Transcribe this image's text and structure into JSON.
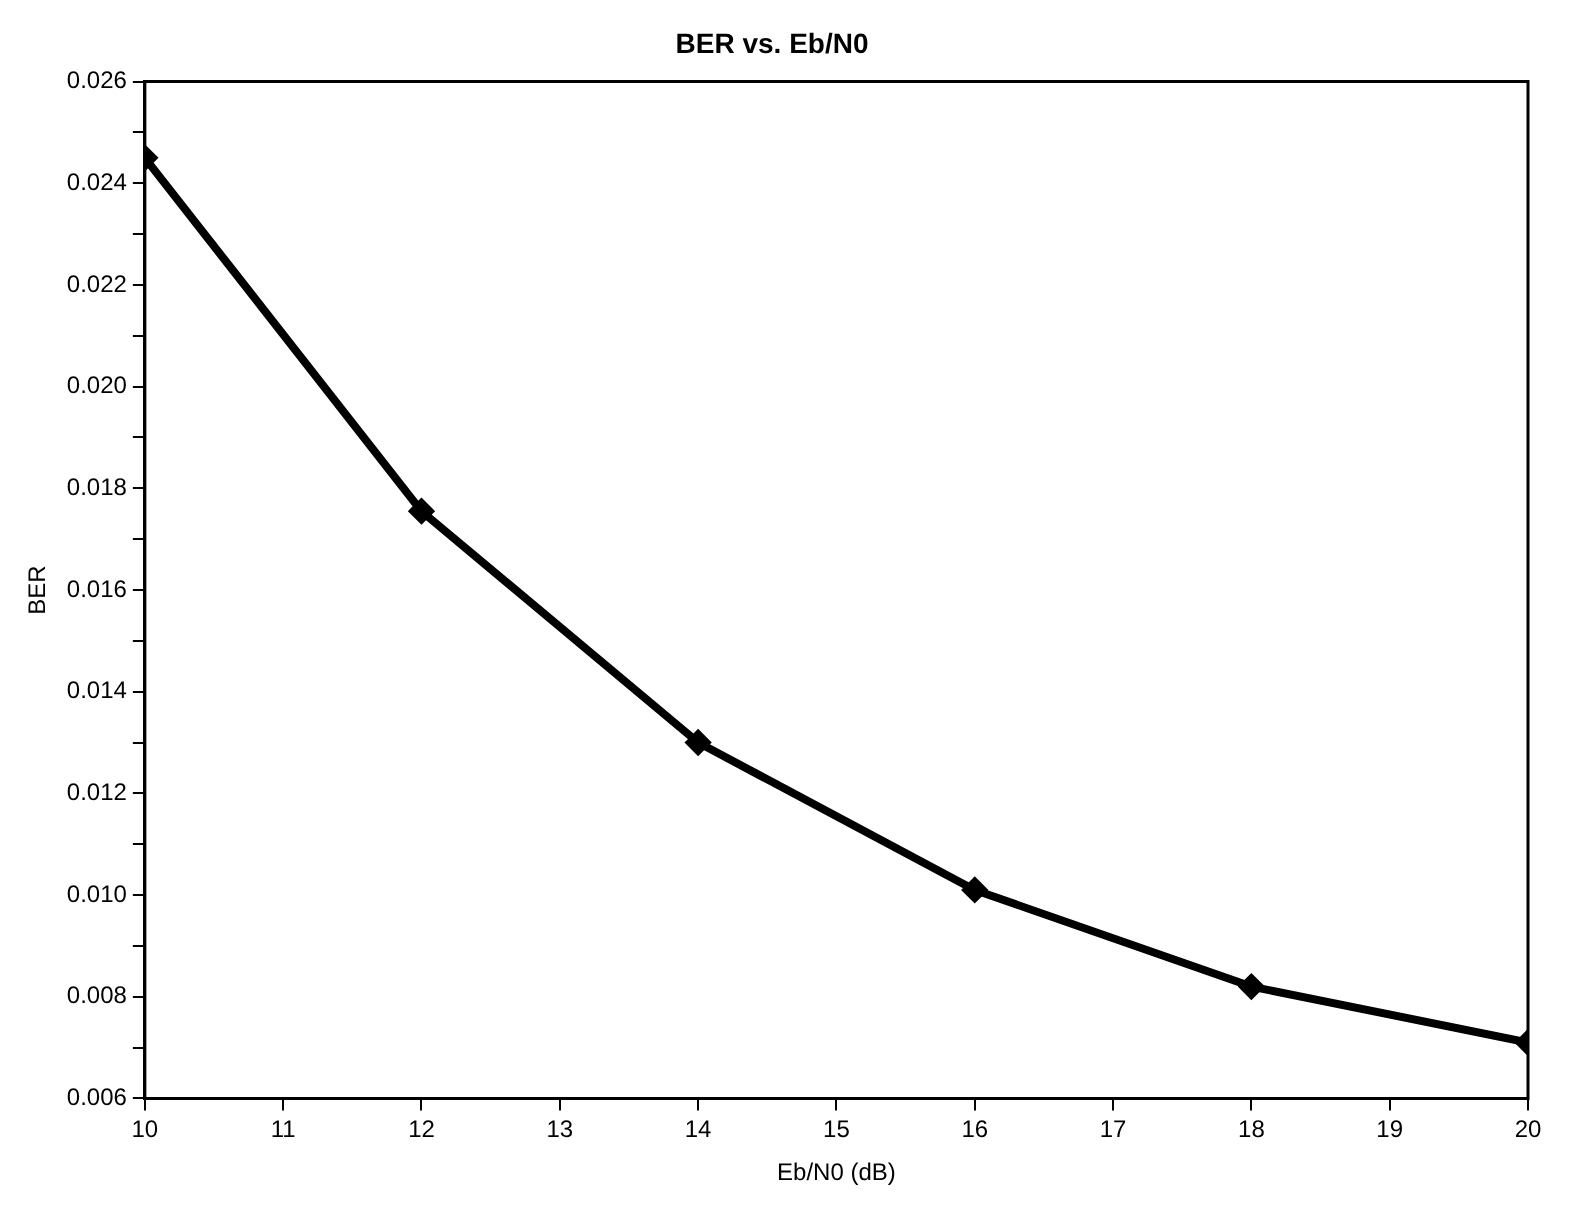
{
  "chart_data": {
    "type": "line",
    "title": "BER vs. Eb/N0",
    "xlabel": "Eb/N0 (dB)",
    "ylabel": "BER",
    "x": [
      10,
      12,
      14,
      16,
      18,
      20
    ],
    "series": [
      {
        "color": "#000000",
        "values": [
          0.0245,
          0.01755,
          0.013,
          0.0101,
          0.0082,
          0.0071
        ]
      }
    ],
    "xlim": [
      10,
      20
    ],
    "xticks": [
      10,
      11,
      12,
      13,
      14,
      15,
      16,
      17,
      18,
      19,
      20
    ],
    "ylim": [
      0.006,
      0.026
    ],
    "yticks": [
      0.006,
      {
        "value": 0.007,
        "label": null
      },
      0.008,
      {
        "value": 0.009,
        "label": null
      },
      {
        "value": 0.01,
        "label": "0.010"
      },
      {
        "value": 0.011,
        "label": null
      },
      0.012,
      {
        "value": 0.013,
        "label": null
      },
      0.014,
      {
        "value": 0.015,
        "label": null
      },
      0.016,
      {
        "value": 0.017,
        "label": null
      },
      0.018,
      {
        "value": 0.019,
        "label": null
      },
      {
        "value": 0.02,
        "label": "0.020"
      },
      {
        "value": 0.021,
        "label": null
      },
      0.022,
      {
        "value": 0.023,
        "label": null
      },
      0.024,
      {
        "value": 0.025,
        "label": null
      },
      0.026
    ],
    "grid": false,
    "legend": false,
    "marker": "diamond",
    "line_style": "solid"
  }
}
